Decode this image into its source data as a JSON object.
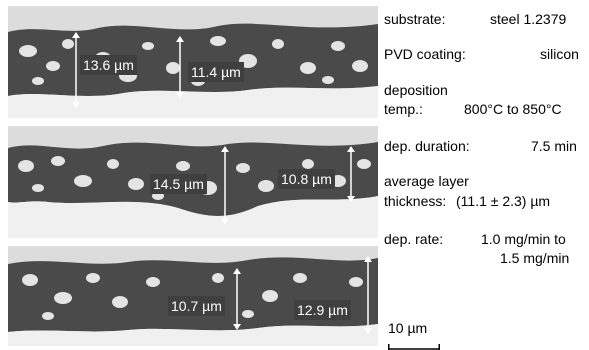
{
  "panels": [
    {
      "id": "top",
      "labels": [
        "13.6 µm",
        "11.4 µm"
      ]
    },
    {
      "id": "middle",
      "labels": [
        "14.5 µm",
        "10.8 µm"
      ]
    },
    {
      "id": "bottom",
      "labels": [
        "10.7 µm",
        "12.9 µm"
      ]
    }
  ],
  "info": {
    "substrate_label": "substrate:",
    "substrate_value": "steel 1.2379",
    "coating_label": "PVD coating:",
    "coating_value": "silicon",
    "temp_label_line1": "deposition",
    "temp_label_line2": "temp.:",
    "temp_value": "800°C to 850°C",
    "duration_label": "dep. duration:",
    "duration_value": "7.5 min",
    "thickness_label_line1": "average layer",
    "thickness_label_line2": "thickness:",
    "thickness_value": "(11.1 ± 2.3) µm",
    "rate_label": "dep. rate:",
    "rate_value_line1": "1.0 mg/min to",
    "rate_value_line2": "1.5 mg/min"
  },
  "scale_bar": {
    "label": "10 µm"
  },
  "colors": {
    "coating_dark": "#4a4a4a",
    "particle_light": "#e6e6e6",
    "substrate": "#f2f2f2",
    "label_bg": "#3f3f3f"
  }
}
